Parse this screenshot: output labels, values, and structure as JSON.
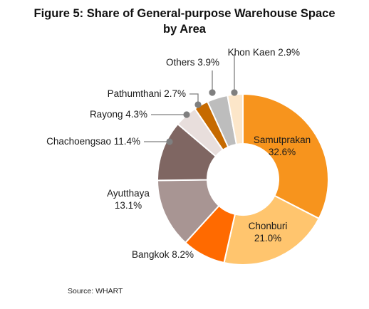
{
  "title": {
    "line1": "Figure 5:  Share of General-purpose Warehouse Space",
    "line2": "by Area"
  },
  "source": "Source: WHART",
  "chart_data": {
    "type": "pie",
    "style": "donut",
    "title": "Figure 5:  Share of General-purpose Warehouse Space by Area",
    "unit": "%",
    "slices": [
      {
        "name": "Samutprakan",
        "value": 32.6,
        "label": "32.6%",
        "color": "#F7941D"
      },
      {
        "name": "Chonburi",
        "value": 21.0,
        "label": "21.0%",
        "color": "#FFC56E"
      },
      {
        "name": "Bangkok",
        "value": 8.2,
        "label": "8.2%",
        "color": "#FF6A00"
      },
      {
        "name": "Ayutthaya",
        "value": 13.1,
        "label": "13.1%",
        "color": "#A89593"
      },
      {
        "name": "Chachoengsao",
        "value": 11.4,
        "label": "11.4%",
        "color": "#7F6662"
      },
      {
        "name": "Rayong",
        "value": 4.3,
        "label": "4.3%",
        "color": "#E8DEDC"
      },
      {
        "name": "Pathumthani",
        "value": 2.7,
        "label": "2.7%",
        "color": "#C66A00"
      },
      {
        "name": "Others",
        "value": 3.9,
        "label": "3.9%",
        "color": "#BDBDBD"
      },
      {
        "name": "Khon Kaen",
        "value": 2.9,
        "label": "2.9%",
        "color": "#FCE6C9"
      }
    ]
  }
}
